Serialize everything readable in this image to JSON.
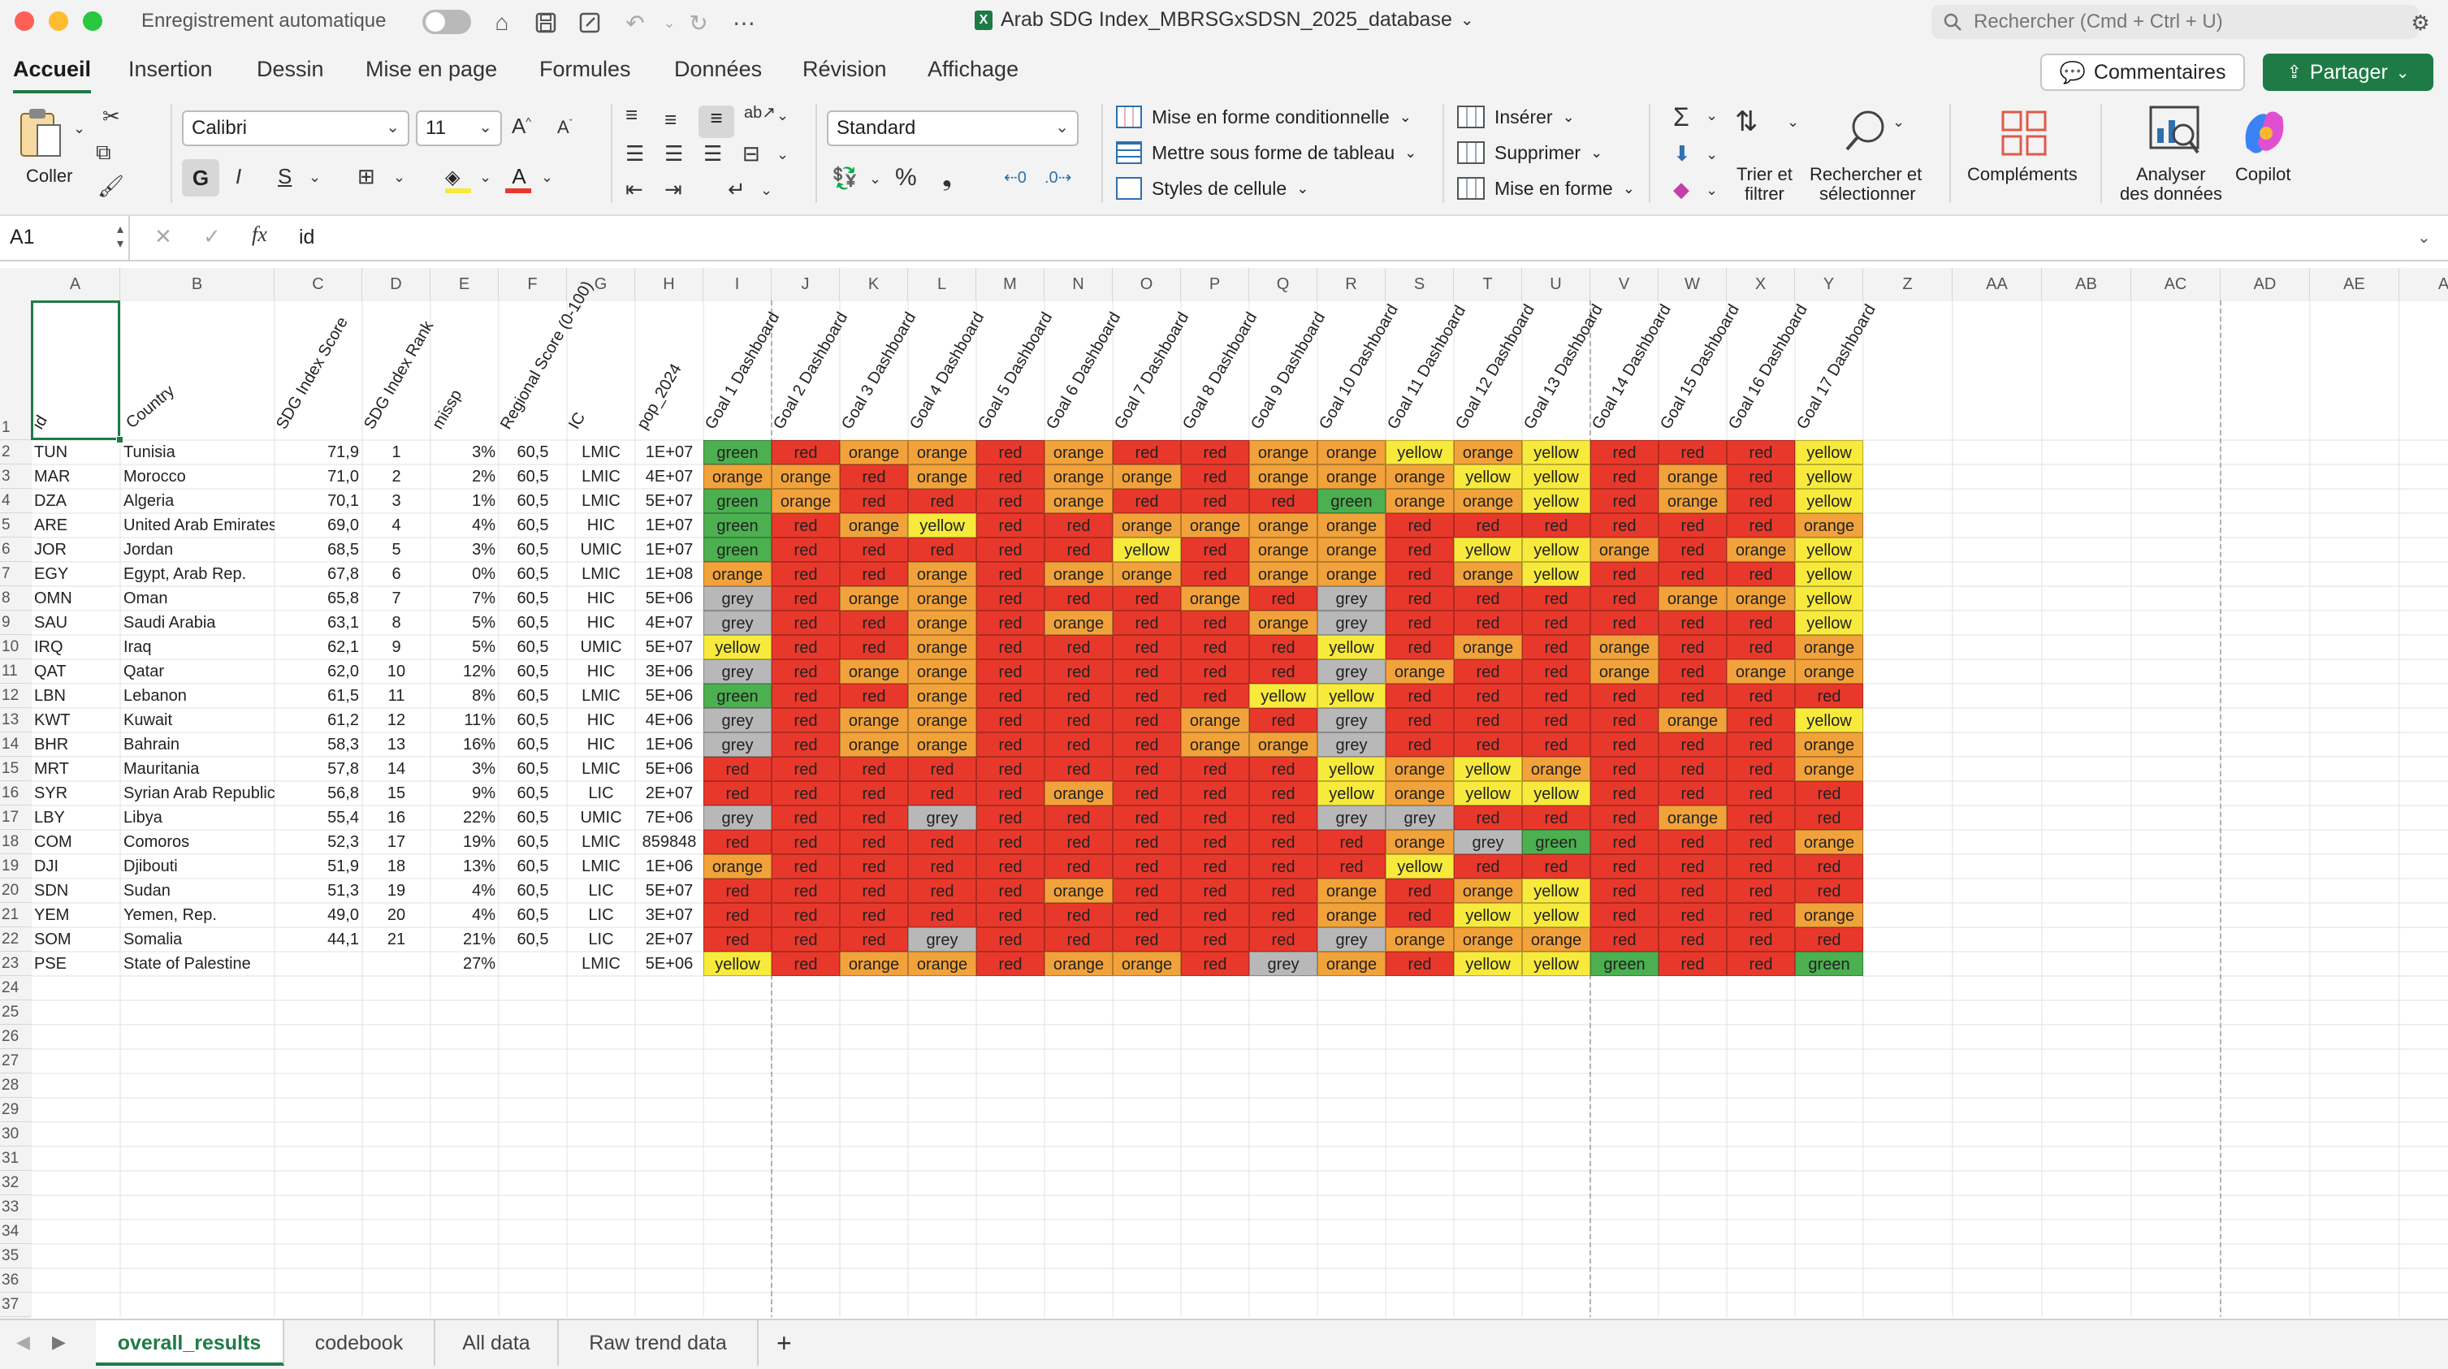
{
  "titlebar": {
    "autosave_label": "Enregistrement automatique",
    "doc_title": "Arab SDG Index_MBRSGxSDSN_2025_database",
    "search_placeholder": "Rechercher (Cmd + Ctrl + U)"
  },
  "ribbon": {
    "tabs": [
      "Accueil",
      "Insertion",
      "Dessin",
      "Mise en page",
      "Formules",
      "Données",
      "Révision",
      "Affichage"
    ],
    "comments": "Commentaires",
    "share": "Partager"
  },
  "toolbar": {
    "paste": "Coller",
    "font": "Calibri",
    "font_size": "11",
    "bold": "G",
    "italic": "I",
    "underline": "S",
    "number_format": "Standard",
    "cond_format": "Mise en forme conditionnelle",
    "format_table": "Mettre sous forme de tableau",
    "cell_styles": "Styles de cellule",
    "insert": "Insérer",
    "delete": "Supprimer",
    "format": "Mise en forme",
    "sort_line1": "Trier et",
    "sort_line2": "filtrer",
    "find_line1": "Rechercher et",
    "find_line2": "sélectionner",
    "addins": "Compléments",
    "analyze_line1": "Analyser",
    "analyze_line2": "des données",
    "copilot": "Copilot"
  },
  "formula_bar": {
    "name_box": "A1",
    "fx": "fx",
    "value": "id"
  },
  "colors": {
    "green": "#4caf50",
    "orange": "#f2a23a",
    "red": "#e8382b",
    "yellow": "#f7ea3c",
    "grey": "#b8b8b8",
    "accent": "#1e7b45"
  },
  "sheet": {
    "columns": [
      "A",
      "B",
      "C",
      "D",
      "E",
      "F",
      "G",
      "H",
      "I",
      "J",
      "K",
      "L",
      "M",
      "N",
      "O",
      "P",
      "Q",
      "R",
      "S",
      "T",
      "U",
      "V",
      "W",
      "X",
      "Y",
      "Z",
      "AA",
      "AB",
      "AC",
      "AD",
      "AE",
      "A"
    ],
    "header_row": [
      "id",
      "Country",
      "SDG Index Score",
      "SDG Index Rank",
      "missp",
      "Regional Score (0-100)",
      "IC",
      "pop_2024",
      "Goal 1 Dashboard",
      "Goal 2 Dashboard",
      "Goal 3 Dashboard",
      "Goal 4 Dashboard",
      "Goal 5 Dashboard",
      "Goal 6 Dashboard",
      "Goal 7 Dashboard",
      "Goal 8 Dashboard",
      "Goal 9 Dashboard",
      "Goal 10 Dashboard",
      "Goal 11 Dashboard",
      "Goal 12 Dashboard",
      "Goal 13 Dashboard",
      "Goal 14 Dashboard",
      "Goal 15 Dashboard",
      "Goal 16 Dashboard",
      "Goal 17 Dashboard"
    ],
    "rows": [
      [
        "TUN",
        "Tunisia",
        "71,9",
        "1",
        "3%",
        "60,5",
        "LMIC",
        "1E+07",
        "green",
        "red",
        "orange",
        "orange",
        "red",
        "orange",
        "red",
        "red",
        "orange",
        "orange",
        "yellow",
        "orange",
        "yellow",
        "red",
        "red",
        "red",
        "yellow"
      ],
      [
        "MAR",
        "Morocco",
        "71,0",
        "2",
        "2%",
        "60,5",
        "LMIC",
        "4E+07",
        "orange",
        "orange",
        "red",
        "orange",
        "red",
        "orange",
        "orange",
        "red",
        "orange",
        "orange",
        "orange",
        "yellow",
        "yellow",
        "red",
        "orange",
        "red",
        "yellow"
      ],
      [
        "DZA",
        "Algeria",
        "70,1",
        "3",
        "1%",
        "60,5",
        "LMIC",
        "5E+07",
        "green",
        "orange",
        "red",
        "red",
        "red",
        "orange",
        "red",
        "red",
        "red",
        "green",
        "orange",
        "orange",
        "yellow",
        "red",
        "orange",
        "red",
        "yellow"
      ],
      [
        "ARE",
        "United Arab Emirates",
        "69,0",
        "4",
        "4%",
        "60,5",
        "HIC",
        "1E+07",
        "green",
        "red",
        "orange",
        "yellow",
        "red",
        "red",
        "orange",
        "orange",
        "orange",
        "orange",
        "red",
        "red",
        "red",
        "red",
        "red",
        "red",
        "orange"
      ],
      [
        "JOR",
        "Jordan",
        "68,5",
        "5",
        "3%",
        "60,5",
        "UMIC",
        "1E+07",
        "green",
        "red",
        "red",
        "red",
        "red",
        "red",
        "yellow",
        "red",
        "orange",
        "orange",
        "red",
        "yellow",
        "yellow",
        "orange",
        "red",
        "orange",
        "yellow"
      ],
      [
        "EGY",
        "Egypt, Arab Rep.",
        "67,8",
        "6",
        "0%",
        "60,5",
        "LMIC",
        "1E+08",
        "orange",
        "red",
        "red",
        "orange",
        "red",
        "orange",
        "orange",
        "red",
        "orange",
        "orange",
        "red",
        "orange",
        "yellow",
        "red",
        "red",
        "red",
        "yellow"
      ],
      [
        "OMN",
        "Oman",
        "65,8",
        "7",
        "7%",
        "60,5",
        "HIC",
        "5E+06",
        "grey",
        "red",
        "orange",
        "orange",
        "red",
        "red",
        "red",
        "orange",
        "red",
        "grey",
        "red",
        "red",
        "red",
        "red",
        "orange",
        "orange",
        "yellow"
      ],
      [
        "SAU",
        "Saudi Arabia",
        "63,1",
        "8",
        "5%",
        "60,5",
        "HIC",
        "4E+07",
        "grey",
        "red",
        "red",
        "orange",
        "red",
        "orange",
        "red",
        "red",
        "orange",
        "grey",
        "red",
        "red",
        "red",
        "red",
        "red",
        "red",
        "yellow"
      ],
      [
        "IRQ",
        "Iraq",
        "62,1",
        "9",
        "5%",
        "60,5",
        "UMIC",
        "5E+07",
        "yellow",
        "red",
        "red",
        "orange",
        "red",
        "red",
        "red",
        "red",
        "red",
        "yellow",
        "red",
        "orange",
        "red",
        "orange",
        "red",
        "red",
        "orange"
      ],
      [
        "QAT",
        "Qatar",
        "62,0",
        "10",
        "12%",
        "60,5",
        "HIC",
        "3E+06",
        "grey",
        "red",
        "orange",
        "orange",
        "red",
        "red",
        "red",
        "red",
        "red",
        "grey",
        "orange",
        "red",
        "red",
        "orange",
        "red",
        "orange",
        "orange"
      ],
      [
        "LBN",
        "Lebanon",
        "61,5",
        "11",
        "8%",
        "60,5",
        "LMIC",
        "5E+06",
        "green",
        "red",
        "red",
        "orange",
        "red",
        "red",
        "red",
        "red",
        "yellow",
        "yellow",
        "red",
        "red",
        "red",
        "red",
        "red",
        "red",
        "red"
      ],
      [
        "KWT",
        "Kuwait",
        "61,2",
        "12",
        "11%",
        "60,5",
        "HIC",
        "4E+06",
        "grey",
        "red",
        "orange",
        "orange",
        "red",
        "red",
        "red",
        "orange",
        "red",
        "grey",
        "red",
        "red",
        "red",
        "red",
        "orange",
        "red",
        "yellow"
      ],
      [
        "BHR",
        "Bahrain",
        "58,3",
        "13",
        "16%",
        "60,5",
        "HIC",
        "1E+06",
        "grey",
        "red",
        "orange",
        "orange",
        "red",
        "red",
        "red",
        "orange",
        "orange",
        "grey",
        "red",
        "red",
        "red",
        "red",
        "red",
        "red",
        "orange"
      ],
      [
        "MRT",
        "Mauritania",
        "57,8",
        "14",
        "3%",
        "60,5",
        "LMIC",
        "5E+06",
        "red",
        "red",
        "red",
        "red",
        "red",
        "red",
        "red",
        "red",
        "red",
        "yellow",
        "orange",
        "yellow",
        "orange",
        "red",
        "red",
        "red",
        "orange"
      ],
      [
        "SYR",
        "Syrian Arab Republic",
        "56,8",
        "15",
        "9%",
        "60,5",
        "LIC",
        "2E+07",
        "red",
        "red",
        "red",
        "red",
        "red",
        "orange",
        "red",
        "red",
        "red",
        "yellow",
        "orange",
        "yellow",
        "yellow",
        "red",
        "red",
        "red",
        "red"
      ],
      [
        "LBY",
        "Libya",
        "55,4",
        "16",
        "22%",
        "60,5",
        "UMIC",
        "7E+06",
        "grey",
        "red",
        "red",
        "grey",
        "red",
        "red",
        "red",
        "red",
        "red",
        "grey",
        "grey",
        "red",
        "red",
        "red",
        "orange",
        "red",
        "red"
      ],
      [
        "COM",
        "Comoros",
        "52,3",
        "17",
        "19%",
        "60,5",
        "LMIC",
        "859848",
        "red",
        "red",
        "red",
        "red",
        "red",
        "red",
        "red",
        "red",
        "red",
        "red",
        "orange",
        "grey",
        "green",
        "red",
        "red",
        "red",
        "orange"
      ],
      [
        "DJI",
        "Djibouti",
        "51,9",
        "18",
        "13%",
        "60,5",
        "LMIC",
        "1E+06",
        "orange",
        "red",
        "red",
        "red",
        "red",
        "red",
        "red",
        "red",
        "red",
        "red",
        "yellow",
        "red",
        "red",
        "red",
        "red",
        "red",
        "red"
      ],
      [
        "SDN",
        "Sudan",
        "51,3",
        "19",
        "4%",
        "60,5",
        "LIC",
        "5E+07",
        "red",
        "red",
        "red",
        "red",
        "red",
        "orange",
        "red",
        "red",
        "red",
        "orange",
        "red",
        "orange",
        "yellow",
        "red",
        "red",
        "red",
        "red"
      ],
      [
        "YEM",
        "Yemen, Rep.",
        "49,0",
        "20",
        "4%",
        "60,5",
        "LIC",
        "3E+07",
        "red",
        "red",
        "red",
        "red",
        "red",
        "red",
        "red",
        "red",
        "red",
        "orange",
        "red",
        "yellow",
        "yellow",
        "red",
        "red",
        "red",
        "orange"
      ],
      [
        "SOM",
        "Somalia",
        "44,1",
        "21",
        "21%",
        "60,5",
        "LIC",
        "2E+07",
        "red",
        "red",
        "red",
        "grey",
        "red",
        "red",
        "red",
        "red",
        "red",
        "grey",
        "orange",
        "orange",
        "orange",
        "red",
        "red",
        "red",
        "red"
      ],
      [
        "PSE",
        "State of Palestine",
        "",
        "",
        "27%",
        "",
        "LMIC",
        "5E+06",
        "yellow",
        "red",
        "orange",
        "orange",
        "red",
        "orange",
        "orange",
        "red",
        "grey",
        "orange",
        "red",
        "yellow",
        "yellow",
        "green",
        "red",
        "red",
        "green"
      ]
    ],
    "row_numbers": [
      "1",
      "2",
      "3",
      "4",
      "5",
      "6",
      "7",
      "8",
      "9",
      "10",
      "11",
      "12",
      "13",
      "14",
      "15",
      "16",
      "17",
      "18",
      "19",
      "20",
      "21",
      "22",
      "23",
      "24",
      "25",
      "26",
      "27",
      "28",
      "29",
      "30",
      "31",
      "32",
      "33",
      "34",
      "35",
      "36",
      "37"
    ]
  },
  "sheet_tabs": [
    "overall_results",
    "codebook",
    "All data",
    "Raw trend data"
  ]
}
